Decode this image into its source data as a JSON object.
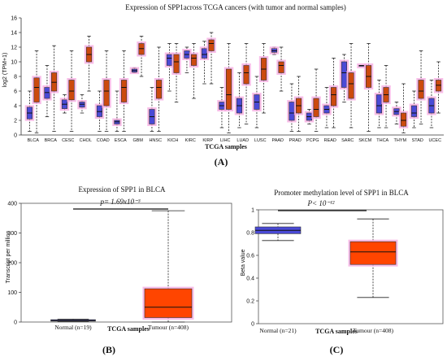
{
  "chart_data": [
    {
      "type": "box",
      "title": "Expression of SPP1across TCGA cancers (with tumor and normal samples)",
      "ylabel": "log2 (TPM+1)",
      "xlabel": "TCGA samples",
      "panel_label": "(A)",
      "ylim": [
        0,
        16
      ],
      "yticks": [
        0,
        2,
        4,
        6,
        8,
        10,
        12,
        14,
        16
      ],
      "colors": {
        "normal": "#4a4ad6",
        "tumor": "#cc4a0e",
        "halo": "#f5a8e0"
      },
      "cancers": [
        {
          "name": "BLCA",
          "normal": {
            "min": 0.5,
            "q1": 2.2,
            "med": 3.0,
            "q3": 3.8,
            "max": 6.0
          },
          "tumor": {
            "min": 0.3,
            "q1": 4.5,
            "med": 6.5,
            "q3": 7.8,
            "max": 11.5
          }
        },
        {
          "name": "BRCA",
          "normal": {
            "min": 2.5,
            "q1": 5.0,
            "med": 5.8,
            "q3": 6.5,
            "max": 9.5
          },
          "tumor": {
            "min": 0.5,
            "q1": 6.0,
            "med": 7.2,
            "q3": 8.5,
            "max": 12.2
          }
        },
        {
          "name": "CESC",
          "normal": {
            "min": 3.0,
            "q1": 3.6,
            "med": 4.2,
            "q3": 4.8,
            "max": 5.5
          },
          "tumor": {
            "min": 0.5,
            "q1": 4.8,
            "med": 6.0,
            "q3": 7.5,
            "max": 11.5
          }
        },
        {
          "name": "CHOL",
          "normal": {
            "min": 3.0,
            "q1": 3.8,
            "med": 4.2,
            "q3": 4.5,
            "max": 5.5
          },
          "tumor": {
            "min": 6.0,
            "q1": 10.0,
            "med": 11.0,
            "q3": 12.0,
            "max": 13.5
          }
        },
        {
          "name": "COAD",
          "normal": {
            "min": 0.5,
            "q1": 2.5,
            "med": 3.2,
            "q3": 4.0,
            "max": 6.0
          },
          "tumor": {
            "min": 0.5,
            "q1": 4.0,
            "med": 6.0,
            "q3": 7.5,
            "max": 11.5
          }
        },
        {
          "name": "ESCA",
          "normal": {
            "min": 0.5,
            "q1": 1.5,
            "med": 1.8,
            "q3": 2.0,
            "max": 6.0
          },
          "tumor": {
            "min": 0.5,
            "q1": 4.5,
            "med": 6.5,
            "q3": 7.5,
            "max": 11.5
          }
        },
        {
          "name": "GBM",
          "normal": {
            "min": 8.5,
            "q1": 8.6,
            "med": 8.8,
            "q3": 9.0,
            "max": 9.2
          },
          "tumor": {
            "min": 8.0,
            "q1": 11.0,
            "med": 11.8,
            "q3": 12.5,
            "max": 13.5
          }
        },
        {
          "name": "HNSC",
          "normal": {
            "min": 0.5,
            "q1": 1.5,
            "med": 2.5,
            "q3": 3.5,
            "max": 6.5
          },
          "tumor": {
            "min": 0.5,
            "q1": 5.0,
            "med": 6.5,
            "q3": 7.5,
            "max": 12.0
          }
        },
        {
          "name": "KICH",
          "normal": {
            "min": 6.0,
            "q1": 9.5,
            "med": 10.5,
            "q3": 11.0,
            "max": 12.5
          },
          "tumor": {
            "min": 4.5,
            "q1": 8.5,
            "med": 10.0,
            "q3": 11.0,
            "max": 12.5
          }
        },
        {
          "name": "KIRC",
          "normal": {
            "min": 8.5,
            "q1": 10.5,
            "med": 11.0,
            "q3": 11.5,
            "max": 12.0
          },
          "tumor": {
            "min": 5.0,
            "q1": 9.5,
            "med": 10.5,
            "q3": 11.0,
            "max": 12.5
          }
        },
        {
          "name": "KIRP",
          "normal": {
            "min": 7.0,
            "q1": 10.5,
            "med": 11.0,
            "q3": 11.8,
            "max": 12.8
          },
          "tumor": {
            "min": 7.0,
            "q1": 11.5,
            "med": 12.5,
            "q3": 13.0,
            "max": 14.0
          }
        },
        {
          "name": "LIHC",
          "normal": {
            "min": 1.0,
            "q1": 3.5,
            "med": 4.0,
            "q3": 4.5,
            "max": 6.5
          },
          "tumor": {
            "min": 0.3,
            "q1": 3.5,
            "med": 5.5,
            "q3": 9.0,
            "max": 12.5
          }
        },
        {
          "name": "LUAD",
          "normal": {
            "min": 1.0,
            "q1": 3.0,
            "med": 4.0,
            "q3": 5.0,
            "max": 8.5
          },
          "tumor": {
            "min": 1.5,
            "q1": 7.0,
            "med": 8.5,
            "q3": 9.5,
            "max": 12.5
          }
        },
        {
          "name": "LUSC",
          "normal": {
            "min": 1.0,
            "q1": 3.5,
            "med": 4.5,
            "q3": 5.5,
            "max": 8.0
          },
          "tumor": {
            "min": 3.0,
            "q1": 7.5,
            "med": 9.0,
            "q3": 10.5,
            "max": 12.5
          }
        },
        {
          "name": "PAAD",
          "normal": {
            "min": 11.0,
            "q1": 11.3,
            "med": 11.5,
            "q3": 11.8,
            "max": 12.0
          },
          "tumor": {
            "min": 6.0,
            "q1": 8.5,
            "med": 9.5,
            "q3": 10.0,
            "max": 12.0
          }
        },
        {
          "name": "PRAD",
          "normal": {
            "min": 0.5,
            "q1": 2.0,
            "med": 3.0,
            "q3": 4.5,
            "max": 7.0
          },
          "tumor": {
            "min": 0.5,
            "q1": 3.0,
            "med": 4.0,
            "q3": 5.0,
            "max": 8.0
          }
        },
        {
          "name": "PCPG",
          "normal": {
            "min": 1.5,
            "q1": 2.0,
            "med": 2.5,
            "q3": 3.0,
            "max": 3.5
          },
          "tumor": {
            "min": 0.5,
            "q1": 2.5,
            "med": 3.5,
            "q3": 5.0,
            "max": 9.0
          }
        },
        {
          "name": "READ",
          "normal": {
            "min": 1.0,
            "q1": 3.0,
            "med": 3.5,
            "q3": 4.0,
            "max": 6.5
          },
          "tumor": {
            "min": 1.0,
            "q1": 4.0,
            "med": 5.5,
            "q3": 6.5,
            "max": 10.5
          }
        },
        {
          "name": "SARC",
          "normal": {
            "min": 4.5,
            "q1": 6.5,
            "med": 8.5,
            "q3": 10.0,
            "max": 11.0
          },
          "tumor": {
            "min": 1.0,
            "q1": 5.0,
            "med": 7.0,
            "q3": 8.5,
            "max": 12.5
          }
        },
        {
          "name": "SKCM",
          "normal": {
            "min": 9.5,
            "q1": 9.5,
            "med": 9.5,
            "q3": 9.5,
            "max": 9.5
          },
          "tumor": {
            "min": 0.5,
            "q1": 6.5,
            "med": 8.0,
            "q3": 9.5,
            "max": 12.5
          }
        },
        {
          "name": "THCA",
          "normal": {
            "min": 1.0,
            "q1": 3.0,
            "med": 4.0,
            "q3": 5.5,
            "max": 7.5
          },
          "tumor": {
            "min": 1.0,
            "q1": 4.5,
            "med": 5.5,
            "q3": 6.5,
            "max": 9.5
          }
        },
        {
          "name": "THYM",
          "normal": {
            "min": 1.5,
            "q1": 2.8,
            "med": 3.2,
            "q3": 3.6,
            "max": 4.5
          },
          "tumor": {
            "min": 0.3,
            "q1": 1.2,
            "med": 2.0,
            "q3": 3.0,
            "max": 7.0
          }
        },
        {
          "name": "STAD",
          "normal": {
            "min": 1.0,
            "q1": 2.5,
            "med": 3.0,
            "q3": 4.0,
            "max": 6.0
          },
          "tumor": {
            "min": 1.5,
            "q1": 5.0,
            "med": 6.0,
            "q3": 7.5,
            "max": 11.5
          }
        },
        {
          "name": "UCEC",
          "normal": {
            "min": 1.0,
            "q1": 3.0,
            "med": 4.0,
            "q3": 5.0,
            "max": 7.5
          },
          "tumor": {
            "min": 3.0,
            "q1": 6.0,
            "med": 6.8,
            "q3": 7.5,
            "max": 10.0
          }
        }
      ]
    },
    {
      "type": "box",
      "title": "Expression of SPP1 in BLCA",
      "ylabel": "Transcript per million",
      "xlabel": "TCGA samples",
      "panel_label": "(B)",
      "pvalue_label": "p= 1.69x10⁻³",
      "ylim": [
        0,
        400
      ],
      "yticks": [
        0,
        100,
        200,
        300,
        400
      ],
      "groups": [
        {
          "name": "Normal (n=19)",
          "min": 2,
          "q1": 3,
          "med": 5,
          "q3": 8,
          "max": 10,
          "color": "#4a4ad6"
        },
        {
          "name": "Tumour (n=408)",
          "min": 0,
          "q1": 15,
          "med": 50,
          "q3": 112,
          "max": 375,
          "color": "#ff4500"
        }
      ]
    },
    {
      "type": "box",
      "title": "Promoter methylation level of SPP1 in BLCA",
      "ylabel": "Beta value",
      "xlabel": "TCGA samples",
      "panel_label": "(C)",
      "pvalue_label": "P< 10⁻¹²",
      "ylim": [
        0,
        1
      ],
      "yticks": [
        "0",
        "0.2",
        "0.4",
        "0.6",
        "0.8",
        "1"
      ],
      "groups": [
        {
          "name": "Normal (n=21)",
          "min": 0.73,
          "q1": 0.79,
          "med": 0.82,
          "q3": 0.85,
          "max": 0.88,
          "color": "#4a4ad6"
        },
        {
          "name": "Tumour (n=408)",
          "min": 0.23,
          "q1": 0.52,
          "med": 0.63,
          "q3": 0.72,
          "max": 0.92,
          "color": "#ff4500"
        }
      ]
    }
  ]
}
